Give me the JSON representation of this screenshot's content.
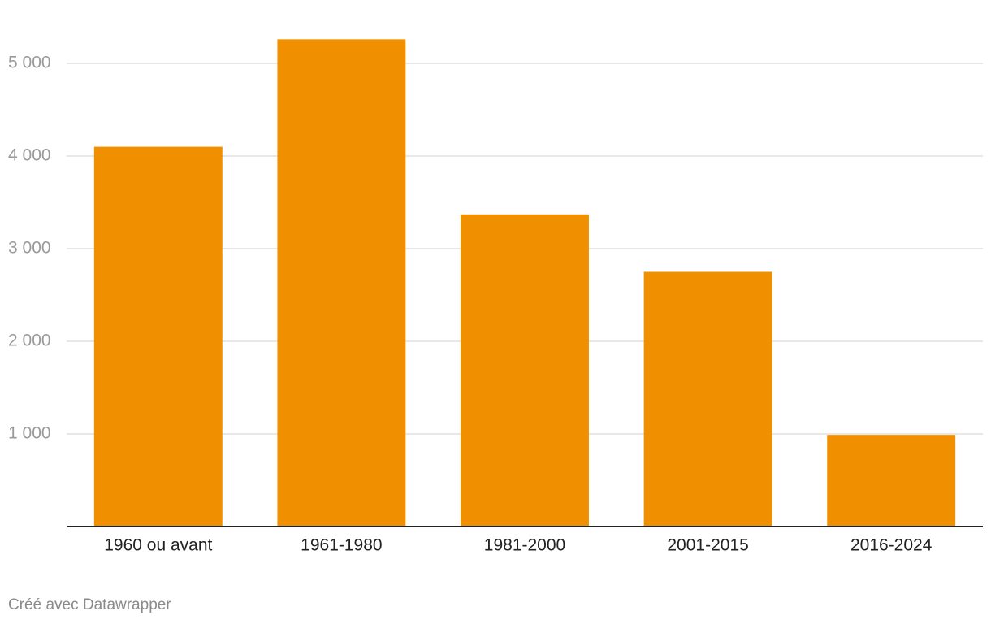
{
  "chart_data": {
    "type": "bar",
    "categories": [
      "1960 ou avant",
      "1961-1980",
      "1981-2000",
      "2001-2015",
      "2016-2024"
    ],
    "values": [
      4100,
      5260,
      3370,
      2750,
      990
    ],
    "color": "#f09000",
    "ylim": [
      0,
      5300
    ],
    "yticks": [
      {
        "value": 1000,
        "label": "1 000"
      },
      {
        "value": 2000,
        "label": "2 000"
      },
      {
        "value": 3000,
        "label": "3 000"
      },
      {
        "value": 4000,
        "label": "4 000"
      },
      {
        "value": 5000,
        "label": "5 000"
      }
    ],
    "grid": true,
    "footer": "Créé avec Datawrapper"
  }
}
